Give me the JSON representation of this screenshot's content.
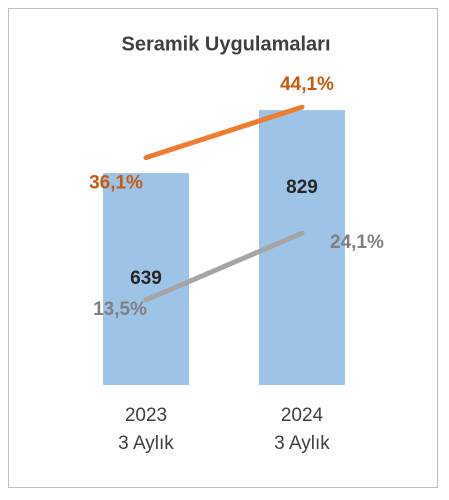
{
  "chart_data": {
    "type": "bar",
    "title": "Seramik Uygulamaları",
    "categories": [
      "2023\n3 Aylık",
      "2024\n3 Aylık"
    ],
    "values": [
      639,
      829
    ],
    "color": "#9dc3e6",
    "ylim": [
      0,
      950
    ],
    "y2lim": [
      0,
      50
    ],
    "series": [
      {
        "name": null,
        "type": "line",
        "axis": "y2",
        "color": "#ed7d31",
        "values": [
          36.1,
          44.1
        ],
        "value_labels": [
          "36,1%",
          "44,1%"
        ]
      },
      {
        "name": null,
        "type": "line",
        "axis": "y2",
        "color": "#a5a5a5",
        "values": [
          13.5,
          24.1
        ],
        "value_labels": [
          "13,5%",
          "24,1%"
        ]
      }
    ]
  }
}
